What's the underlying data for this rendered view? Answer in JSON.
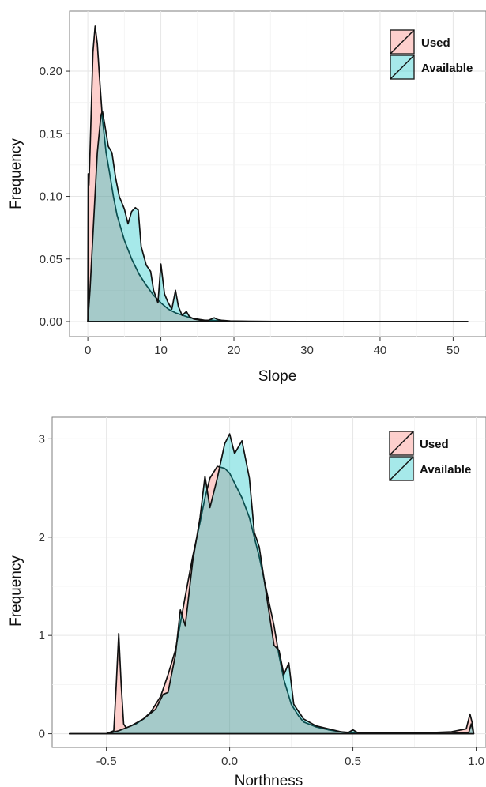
{
  "chart_data": [
    {
      "type": "area",
      "xlabel": "Slope",
      "ylabel": "Frequency",
      "xlim": [
        -2.5,
        54.5
      ],
      "ylim": [
        -0.012,
        0.248
      ],
      "xticks": [
        0,
        10,
        20,
        30,
        40,
        50
      ],
      "yticks": [
        0.0,
        0.05,
        0.1,
        0.15,
        0.2
      ],
      "xtick_labels": [
        "0",
        "10",
        "20",
        "30",
        "40",
        "50"
      ],
      "ytick_labels": [
        "0.00",
        "0.05",
        "0.10",
        "0.15",
        "0.20"
      ],
      "grid": true,
      "legend_position": "top-right",
      "series": [
        {
          "name": "Used",
          "color": "#f8766d",
          "x": [
            0,
            0.05,
            0.15,
            0.3,
            0.5,
            0.7,
            1.0,
            1.3,
            1.6,
            2.0,
            2.5,
            3.0,
            3.5,
            4.0,
            5.0,
            6.0,
            7.0,
            8.0,
            9.0,
            10.0,
            11.0,
            12.0,
            13.0,
            14.0,
            15.0,
            16.0,
            17.0,
            18.0,
            20.0,
            25.0,
            30.0,
            40.0,
            52.0
          ],
          "y": [
            0,
            0.118,
            0.109,
            0.135,
            0.175,
            0.215,
            0.236,
            0.222,
            0.195,
            0.162,
            0.135,
            0.118,
            0.1,
            0.085,
            0.065,
            0.05,
            0.038,
            0.029,
            0.021,
            0.015,
            0.01,
            0.007,
            0.005,
            0.003,
            0.002,
            0.001,
            0.001,
            0.0005,
            0.0003,
            0.0001,
            0.0001,
            0.0,
            0.0
          ]
        },
        {
          "name": "Available",
          "color": "#00bfc4",
          "x": [
            0,
            0.3,
            0.8,
            1.3,
            1.8,
            2.0,
            2.3,
            2.8,
            3.3,
            3.8,
            4.3,
            5.0,
            5.5,
            6.0,
            6.5,
            6.9,
            7.3,
            8.0,
            8.6,
            9.0,
            9.6,
            10.0,
            10.5,
            11.0,
            11.5,
            12.0,
            12.4,
            12.9,
            13.5,
            13.9,
            14.5,
            15.5,
            16.5,
            17.3,
            17.8,
            18.3,
            19.5,
            22.0,
            30.0,
            40.0,
            52.0
          ],
          "y": [
            0,
            0.025,
            0.08,
            0.135,
            0.165,
            0.168,
            0.158,
            0.14,
            0.135,
            0.115,
            0.1,
            0.09,
            0.078,
            0.088,
            0.091,
            0.089,
            0.06,
            0.045,
            0.04,
            0.025,
            0.015,
            0.046,
            0.022,
            0.015,
            0.01,
            0.025,
            0.012,
            0.005,
            0.008,
            0.004,
            0.002,
            0.001,
            0.001,
            0.003,
            0.0015,
            0.001,
            0.0005,
            0.0002,
            0.0001,
            0.0,
            0.0
          ]
        }
      ]
    },
    {
      "type": "area",
      "xlabel": "Northness",
      "ylabel": "Frequency",
      "xlim": [
        -0.72,
        1.04
      ],
      "ylim": [
        -0.14,
        3.22
      ],
      "xticks": [
        -0.5,
        0.0,
        0.5,
        1.0
      ],
      "yticks": [
        0,
        1,
        2,
        3
      ],
      "xtick_labels": [
        "-0.5",
        "0.0",
        "0.5",
        "1.0"
      ],
      "ytick_labels": [
        "0",
        "1",
        "2",
        "3"
      ],
      "grid": true,
      "legend_position": "top-right",
      "series": [
        {
          "name": "Used",
          "color": "#f8766d",
          "x": [
            -0.65,
            -0.5,
            -0.47,
            -0.46,
            -0.45,
            -0.44,
            -0.43,
            -0.42,
            -0.4,
            -0.38,
            -0.35,
            -0.32,
            -0.3,
            -0.28,
            -0.25,
            -0.22,
            -0.2,
            -0.18,
            -0.15,
            -0.12,
            -0.1,
            -0.08,
            -0.05,
            -0.02,
            0.0,
            0.02,
            0.05,
            0.08,
            0.1,
            0.12,
            0.15,
            0.18,
            0.2,
            0.22,
            0.25,
            0.28,
            0.3,
            0.35,
            0.4,
            0.45,
            0.5,
            0.6,
            0.7,
            0.8,
            0.9,
            0.96,
            0.975,
            0.985,
            0.99
          ],
          "y": [
            0,
            0.0,
            0.03,
            0.5,
            1.02,
            0.5,
            0.1,
            0.06,
            0.08,
            0.1,
            0.15,
            0.22,
            0.3,
            0.38,
            0.6,
            0.85,
            1.12,
            1.4,
            1.8,
            2.15,
            2.4,
            2.6,
            2.72,
            2.7,
            2.65,
            2.55,
            2.4,
            2.2,
            2.0,
            1.8,
            1.45,
            1.1,
            0.8,
            0.55,
            0.3,
            0.18,
            0.12,
            0.07,
            0.04,
            0.02,
            0.01,
            0.01,
            0.01,
            0.01,
            0.02,
            0.05,
            0.2,
            0.1,
            0.0
          ]
        },
        {
          "name": "Available",
          "color": "#00bfc4",
          "x": [
            -0.65,
            -0.5,
            -0.45,
            -0.4,
            -0.35,
            -0.3,
            -0.27,
            -0.25,
            -0.22,
            -0.2,
            -0.18,
            -0.15,
            -0.12,
            -0.1,
            -0.08,
            -0.05,
            -0.02,
            0.0,
            0.02,
            0.05,
            0.08,
            0.1,
            0.12,
            0.15,
            0.18,
            0.2,
            0.22,
            0.24,
            0.26,
            0.3,
            0.35,
            0.4,
            0.45,
            0.48,
            0.5,
            0.52,
            0.6,
            0.7,
            0.8,
            0.9,
            0.97,
            0.98,
            0.99
          ],
          "y": [
            0,
            0.0,
            0.03,
            0.08,
            0.15,
            0.25,
            0.4,
            0.42,
            0.8,
            1.26,
            1.1,
            1.75,
            2.2,
            2.62,
            2.3,
            2.6,
            2.95,
            3.05,
            2.85,
            2.98,
            2.6,
            2.05,
            1.9,
            1.4,
            0.9,
            0.85,
            0.6,
            0.72,
            0.3,
            0.15,
            0.08,
            0.05,
            0.02,
            0.01,
            0.04,
            0.01,
            0.005,
            0.005,
            0.005,
            0.005,
            0.01,
            0.1,
            0.0
          ]
        }
      ]
    }
  ]
}
